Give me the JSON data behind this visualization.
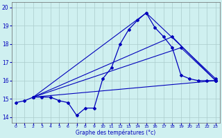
{
  "xlabel": "Graphe des températures (°c)",
  "x_ticks": [
    0,
    1,
    2,
    3,
    4,
    5,
    6,
    7,
    8,
    9,
    10,
    11,
    12,
    13,
    14,
    15,
    16,
    17,
    18,
    19,
    20,
    21,
    22,
    23
  ],
  "y_ticks": [
    14,
    15,
    16,
    17,
    18,
    19,
    20
  ],
  "ylim": [
    13.7,
    20.3
  ],
  "xlim": [
    -0.5,
    23.5
  ],
  "background_color": "#cff0f0",
  "line_color": "#0000bb",
  "grid_color": "#aacccc",
  "main_series_x": [
    0,
    1,
    2,
    3,
    4,
    5,
    6,
    7,
    8,
    9,
    10,
    11,
    12,
    13,
    14,
    15,
    16,
    17,
    18,
    19,
    20,
    21,
    22,
    23
  ],
  "main_series_y": [
    14.8,
    14.9,
    15.1,
    15.1,
    15.1,
    14.9,
    14.8,
    14.1,
    14.5,
    14.5,
    16.1,
    16.7,
    18.0,
    18.8,
    19.3,
    19.7,
    18.9,
    18.4,
    17.8,
    16.3,
    16.1,
    16.0,
    16.0,
    16.0
  ],
  "straight_lines": [
    {
      "x": [
        2,
        15,
        23
      ],
      "y": [
        15.1,
        19.7,
        16.1
      ]
    },
    {
      "x": [
        2,
        18,
        23
      ],
      "y": [
        15.1,
        18.4,
        16.0
      ]
    },
    {
      "x": [
        2,
        19,
        23
      ],
      "y": [
        15.1,
        17.8,
        16.0
      ]
    },
    {
      "x": [
        2,
        23
      ],
      "y": [
        15.1,
        16.0
      ]
    }
  ]
}
